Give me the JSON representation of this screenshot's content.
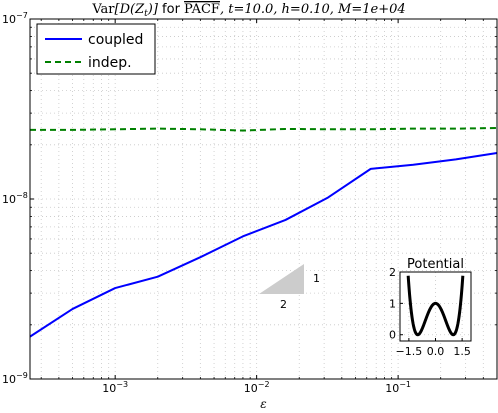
{
  "chart_data": [
    {
      "type": "line",
      "title": "Var[D(Z_t)] for PACF, t=10.0, h=0.10, M=1e+04",
      "title_parts": {
        "var": "Var",
        "expr": "[D(Z",
        "sub": "t",
        "close": ")]",
        "for": " for ",
        "pacf": "PACF",
        "params": ", t=10.0, h=0.10, M=1e+04"
      },
      "xlabel": "ε",
      "ylabel": "",
      "xscale": "log",
      "yscale": "log",
      "xlim": [
        0.00025,
        0.5
      ],
      "ylim": [
        1e-09,
        1e-07
      ],
      "grid": true,
      "legend_placement": "top-left",
      "x_ticks": [
        {
          "value": 0.001,
          "base": "10",
          "exp": "−3"
        },
        {
          "value": 0.01,
          "base": "10",
          "exp": "−2"
        },
        {
          "value": 0.1,
          "base": "10",
          "exp": "−1"
        }
      ],
      "y_ticks": [
        {
          "value": 1e-09,
          "base": "10",
          "exp": "−9"
        },
        {
          "value": 1e-08,
          "base": "10",
          "exp": "−8"
        },
        {
          "value": 1e-07,
          "base": "10",
          "exp": "−7"
        }
      ],
      "series": [
        {
          "name": "coupled",
          "color": "#0000ff",
          "dash": "solid",
          "x": [
            0.00025,
            0.0005,
            0.001,
            0.002,
            0.004,
            0.008,
            0.016,
            0.032,
            0.064,
            0.128,
            0.256,
            0.5
          ],
          "y": [
            1.72e-09,
            2.45e-09,
            3.2e-09,
            3.7e-09,
            4.75e-09,
            6.2e-09,
            7.65e-09,
            1.02e-08,
            1.47e-08,
            1.55e-08,
            1.66e-08,
            1.8e-08
          ]
        },
        {
          "name": "indep.",
          "color": "#008000",
          "dash": "dashed",
          "x": [
            0.00025,
            0.0005,
            0.001,
            0.002,
            0.004,
            0.008,
            0.016,
            0.032,
            0.064,
            0.128,
            0.256,
            0.5
          ],
          "y": [
            2.42e-08,
            2.42e-08,
            2.44e-08,
            2.46e-08,
            2.44e-08,
            2.4e-08,
            2.45e-08,
            2.44e-08,
            2.44e-08,
            2.46e-08,
            2.46e-08,
            2.48e-08
          ]
        }
      ],
      "slope_triangle": {
        "rise_label": "1",
        "run_label": "2",
        "color": "#cccccc"
      }
    },
    {
      "type": "line",
      "title": "Potential",
      "xlim": [
        -2,
        2
      ],
      "ylim": [
        -0.2,
        2
      ],
      "x_ticks": [
        {
          "value": -1.5,
          "label": "−1.5"
        },
        {
          "value": 0.0,
          "label": "0.0"
        },
        {
          "value": 1.5,
          "label": "1.5"
        }
      ],
      "y_ticks": [
        {
          "value": 0,
          "label": "0"
        },
        {
          "value": 1,
          "label": "1"
        },
        {
          "value": 2,
          "label": "2"
        }
      ],
      "series": [
        {
          "name": "",
          "color": "#000000",
          "function": "(x^2 - 1)^2"
        }
      ]
    }
  ]
}
